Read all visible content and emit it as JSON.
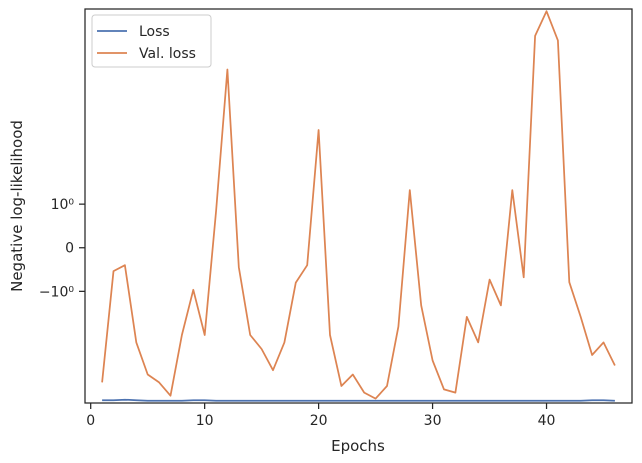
{
  "chart_data": {
    "type": "line",
    "xlabel": "Epochs",
    "ylabel": "Negative log-likelihood",
    "yscale": "symlog",
    "xlim": [
      -0.5,
      47.5
    ],
    "ylim": [
      -10.8,
      43.5
    ],
    "x_ticks": [
      0,
      10,
      20,
      30,
      40
    ],
    "x_tick_labels": [
      "0",
      "10",
      "20",
      "30",
      "40"
    ],
    "y_ticks": [
      1,
      0,
      -1
    ],
    "y_tick_labels": [
      "10⁰",
      "0",
      "−10⁰"
    ],
    "legend_position": "top-left",
    "grid": false,
    "x": [
      1,
      2,
      3,
      4,
      5,
      6,
      7,
      8,
      9,
      10,
      11,
      12,
      13,
      14,
      15,
      16,
      17,
      18,
      19,
      20,
      21,
      22,
      23,
      24,
      25,
      26,
      27,
      28,
      29,
      30,
      31,
      32,
      33,
      34,
      35,
      36,
      37,
      38,
      39,
      40,
      41,
      42,
      43,
      44,
      45,
      46
    ],
    "series": [
      {
        "name": "Loss",
        "color": "#4c72b0",
        "values": [
          -10.3,
          -10.3,
          -10.2,
          -10.3,
          -10.4,
          -10.4,
          -10.4,
          -10.4,
          -10.3,
          -10.3,
          -10.4,
          -10.4,
          -10.4,
          -10.4,
          -10.4,
          -10.4,
          -10.4,
          -10.4,
          -10.4,
          -10.4,
          -10.4,
          -10.4,
          -10.4,
          -10.4,
          -10.4,
          -10.4,
          -10.4,
          -10.4,
          -10.4,
          -10.4,
          -10.4,
          -10.4,
          -10.4,
          -10.4,
          -10.4,
          -10.4,
          -10.4,
          -10.4,
          -10.4,
          -10.4,
          -10.4,
          -10.4,
          -10.4,
          -10.3,
          -10.3,
          -10.4
        ]
      },
      {
        "name": "Val. loss",
        "color": "#dd8452",
        "values": [
          -7.5,
          -0.45,
          -0.32,
          -3.5,
          -6.5,
          -7.5,
          -9.5,
          -3,
          -0.95,
          -3,
          0.8,
          16,
          -0.36,
          -3,
          -4,
          -6,
          -3.5,
          -0.74,
          -0.32,
          5.5,
          -3,
          -8,
          -6.5,
          -9,
          -10,
          -8,
          -2.5,
          1.5,
          -1.5,
          -5,
          -8.5,
          -9,
          -2,
          -3.5,
          -0.66,
          -1.5,
          1.5,
          -0.6,
          28,
          42,
          26,
          -0.73,
          -2,
          -4.5,
          -3.5,
          -5.5
        ]
      }
    ]
  }
}
